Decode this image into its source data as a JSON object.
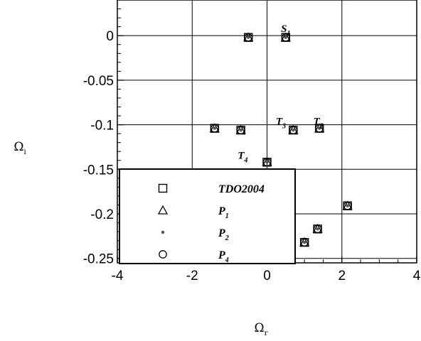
{
  "chart_data": {
    "type": "scatter",
    "xlabel": "Ω",
    "xlabel_sub": "r",
    "ylabel": "Ω",
    "ylabel_sub": "i",
    "xlim": [
      -4,
      4
    ],
    "ylim": [
      -0.255,
      0.04
    ],
    "xticks": [
      -4,
      -2,
      0,
      2,
      4
    ],
    "xtick_labels": [
      "-4",
      "-2",
      "0",
      "2",
      "4"
    ],
    "yticks": [
      0,
      -0.05,
      -0.1,
      -0.15,
      -0.2,
      -0.25
    ],
    "ytick_labels": [
      "0",
      "-0.05",
      "-0.1",
      "-0.15",
      "-0.2",
      "-0.25"
    ],
    "grid": true,
    "legend_position": "bottom-left",
    "series": [
      {
        "name": "TDO2004",
        "name_sub": "",
        "marker": "square",
        "x": [
          -0.5,
          0.5,
          -1.4,
          -0.7,
          0.7,
          1.4,
          0.0,
          1.0,
          1.35,
          2.15
        ],
        "y": [
          -0.002,
          -0.002,
          -0.104,
          -0.106,
          -0.106,
          -0.104,
          -0.142,
          -0.232,
          -0.217,
          -0.191
        ]
      },
      {
        "name": "P",
        "name_sub": "1",
        "marker": "triangle",
        "x": [
          -0.5,
          0.5,
          -1.4,
          -0.7,
          0.7,
          1.4,
          0.0,
          1.0,
          1.35,
          2.15
        ],
        "y": [
          -0.002,
          -0.002,
          -0.104,
          -0.106,
          -0.106,
          -0.104,
          -0.142,
          -0.232,
          -0.217,
          -0.191
        ]
      },
      {
        "name": "P",
        "name_sub": "2",
        "marker": "dot",
        "x": [
          -0.5,
          0.5,
          -1.4,
          -0.7,
          0.7,
          1.4,
          0.0,
          1.0,
          1.35,
          2.15
        ],
        "y": [
          -0.002,
          -0.002,
          -0.104,
          -0.106,
          -0.106,
          -0.104,
          -0.142,
          -0.232,
          -0.217,
          -0.191
        ]
      },
      {
        "name": "P",
        "name_sub": "4",
        "marker": "circle",
        "x": [
          -0.5,
          0.5,
          -1.4,
          -0.7,
          0.7,
          1.4,
          0.0,
          1.0,
          1.35,
          2.15
        ],
        "y": [
          -0.002,
          -0.002,
          -0.104,
          -0.106,
          -0.106,
          -0.104,
          -0.142,
          -0.232,
          -0.217,
          -0.191
        ]
      }
    ],
    "annotations": [
      {
        "text": "S",
        "sub": "1",
        "x": 0.5,
        "y": 0.004
      },
      {
        "text": "T",
        "sub": "3",
        "x": 0.37,
        "y": -0.1
      },
      {
        "text": "T",
        "sub": "2",
        "x": 1.37,
        "y": -0.1
      },
      {
        "text": "T",
        "sub": "4",
        "x": -0.65,
        "y": -0.138
      }
    ]
  }
}
